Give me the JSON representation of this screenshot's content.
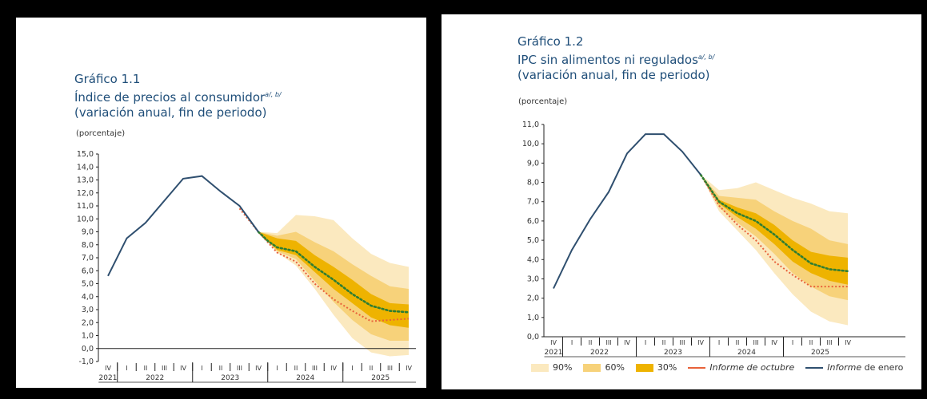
{
  "charts": [
    {
      "heading": "Gráfico 1.1",
      "title": "Índice de precios al consumidor",
      "title_notes": "a/, b/",
      "subtitle": "(variación anual, fin de periodo)",
      "unit_label": "(porcentaje)"
    },
    {
      "heading": "Gráfico 1.2",
      "title": "IPC sin alimentos ni regulados",
      "title_notes": "a/, b/",
      "subtitle": "(variación anual, fin de periodo)",
      "unit_label": "(porcentaje)"
    }
  ],
  "legend": {
    "band90": "90%",
    "band60": "60%",
    "band30": "30%",
    "oct_label": "Informe de octubre",
    "jan_prefix": "Informe",
    "jan_suffix": " de enero"
  },
  "colors": {
    "band90": "#fbe9bf",
    "band60": "#f7d27a",
    "band30": "#eeb300",
    "actual": "#2f4f6f",
    "central": "#2e7d32",
    "october": "#e8623a",
    "title": "#1f4e79"
  },
  "chart_data": [
    {
      "type": "area",
      "title": "Índice de precios al consumidor",
      "ylim": [
        -1,
        15
      ],
      "yticks": [
        "15,0",
        "14,0",
        "13,0",
        "12,0",
        "11,0",
        "10,0",
        "9,0",
        "8,0",
        "7,0",
        "6,0",
        "5,0",
        "4,0",
        "3,0",
        "2,0",
        "1,0",
        "0,0",
        "-1,0"
      ],
      "ytick_values": [
        15,
        14,
        13,
        12,
        11,
        10,
        9,
        8,
        7,
        6,
        5,
        4,
        3,
        2,
        1,
        0,
        -1
      ],
      "quarters": [
        "IV",
        "I",
        "II",
        "III",
        "IV",
        "I",
        "II",
        "III",
        "IV",
        "I",
        "II",
        "III",
        "IV",
        "I",
        "II",
        "III",
        "IV"
      ],
      "years": [
        "2021",
        "2022",
        "2023",
        "2024",
        "2025"
      ],
      "series": [
        {
          "name": "Informe de enero",
          "x": [
            0,
            1,
            2,
            3,
            4,
            5,
            6,
            7,
            8
          ],
          "values": [
            5.6,
            8.5,
            9.7,
            11.4,
            13.1,
            13.3,
            12.1,
            11.0,
            9.0
          ]
        },
        {
          "name": "Informe de octubre",
          "x": [
            7,
            8,
            9,
            10,
            11,
            12,
            13,
            14,
            15,
            16
          ],
          "values": [
            10.8,
            9.0,
            7.4,
            6.7,
            5.0,
            3.8,
            2.9,
            2.1,
            2.2,
            2.3
          ]
        }
      ],
      "central": {
        "x": [
          8,
          8.5,
          9,
          10,
          11,
          12,
          13,
          14,
          15,
          16
        ],
        "values": [
          9.0,
          8.3,
          7.8,
          7.5,
          6.3,
          5.3,
          4.2,
          3.3,
          2.9,
          2.8
        ]
      },
      "fan": {
        "x": [
          8,
          9,
          10,
          11,
          12,
          13,
          14,
          15,
          16
        ],
        "band90": {
          "lower": [
            9.0,
            7.4,
            6.4,
            4.6,
            2.6,
            0.8,
            -0.3,
            -0.6,
            -0.5
          ],
          "upper": [
            9.0,
            8.9,
            10.3,
            10.2,
            9.9,
            8.5,
            7.3,
            6.6,
            6.3
          ]
        },
        "band60": {
          "lower": [
            9.0,
            7.5,
            6.9,
            5.2,
            3.6,
            2.2,
            1.1,
            0.6,
            0.6
          ],
          "upper": [
            9.0,
            8.7,
            9.0,
            8.2,
            7.5,
            6.5,
            5.6,
            4.8,
            4.6
          ]
        },
        "band30": {
          "lower": [
            9.0,
            7.6,
            7.2,
            5.9,
            4.6,
            3.5,
            2.4,
            1.8,
            1.6
          ],
          "upper": [
            9.0,
            8.5,
            8.3,
            7.2,
            6.3,
            5.3,
            4.2,
            3.5,
            3.4
          ]
        }
      }
    },
    {
      "type": "area",
      "title": "IPC sin alimentos ni regulados",
      "ylim": [
        0,
        11
      ],
      "yticks": [
        "11,0",
        "10,0",
        "9,0",
        "8,0",
        "7,0",
        "6,0",
        "5,0",
        "4,0",
        "3,0",
        "2,0",
        "1,0",
        "0,0"
      ],
      "ytick_values": [
        11,
        10,
        9,
        8,
        7,
        6,
        5,
        4,
        3,
        2,
        1,
        0
      ],
      "quarters": [
        "IV",
        "I",
        "II",
        "III",
        "IV",
        "I",
        "II",
        "III",
        "IV",
        "I",
        "II",
        "III",
        "IV",
        "I",
        "II",
        "III",
        "IV"
      ],
      "years": [
        "2021",
        "2022",
        "2023",
        "2024",
        "2025"
      ],
      "series": [
        {
          "name": "Informe de enero",
          "x": [
            0,
            1,
            2,
            3,
            4,
            5,
            6,
            7,
            8
          ],
          "values": [
            2.5,
            4.5,
            6.1,
            7.5,
            9.5,
            10.5,
            10.5,
            9.6,
            8.4
          ]
        },
        {
          "name": "Informe de octubre",
          "x": [
            8,
            9,
            10,
            11,
            12,
            13,
            14,
            15,
            16
          ],
          "values": [
            8.4,
            6.8,
            5.8,
            5.0,
            3.9,
            3.2,
            2.6,
            2.6,
            2.6
          ]
        }
      ],
      "central": {
        "x": [
          8,
          9,
          10,
          11,
          12,
          13,
          14,
          15,
          16
        ],
        "values": [
          8.4,
          7.0,
          6.4,
          6.0,
          5.3,
          4.5,
          3.8,
          3.5,
          3.4
        ]
      },
      "fan": {
        "x": [
          8,
          9,
          10,
          11,
          12,
          13,
          14,
          15,
          16
        ],
        "band90": {
          "lower": [
            8.4,
            6.5,
            5.5,
            4.5,
            3.3,
            2.2,
            1.3,
            0.8,
            0.6
          ],
          "upper": [
            8.4,
            7.6,
            7.7,
            8.0,
            7.6,
            7.2,
            6.9,
            6.5,
            6.4
          ]
        },
        "band60": {
          "lower": [
            8.4,
            6.7,
            5.9,
            5.2,
            4.3,
            3.3,
            2.6,
            2.1,
            1.9
          ],
          "upper": [
            8.4,
            7.3,
            7.2,
            7.1,
            6.5,
            6.0,
            5.6,
            5.0,
            4.8
          ]
        },
        "band30": {
          "lower": [
            8.4,
            6.9,
            6.2,
            5.6,
            4.8,
            3.9,
            3.3,
            2.9,
            2.7
          ],
          "upper": [
            8.4,
            7.1,
            6.7,
            6.4,
            5.8,
            5.0,
            4.4,
            4.2,
            4.1
          ]
        }
      }
    }
  ]
}
